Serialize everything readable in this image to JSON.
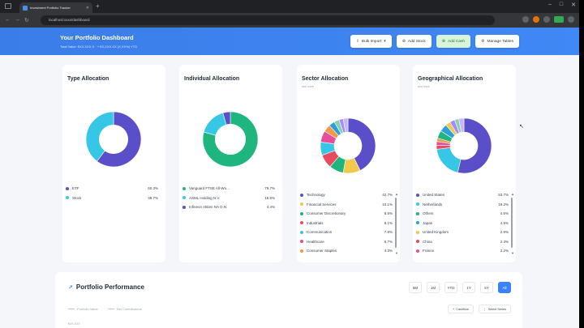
{
  "browser": {
    "tab_title": "Investment Portfolio Tracker",
    "url": "localhost:xxxx/dashboard",
    "profile_badge": "PSE"
  },
  "header": {
    "title": "Your Portfolio Dashboard",
    "subtitle": "Total Value: €XX,XXX.X  ·  + €X,XXX.XX (X.XX%) YTD",
    "buttons": {
      "bulk_import": "Bulk Import",
      "add_stock": "Add Stock",
      "add_cash": "Add Cash",
      "manage_tables": "Manage Tables"
    }
  },
  "colors": {
    "brand": "#3b82f6",
    "purple": "#5b4fc9",
    "cyan": "#37c7e6",
    "green": "#1fb57e"
  },
  "cards": {
    "type": {
      "title": "Type Allocation",
      "items": [
        {
          "name": "ETF",
          "pct": "60.3%",
          "color": "#5b4fc9",
          "value": 60.3
        },
        {
          "name": "Stock",
          "pct": "39.7%",
          "color": "#37c7e6",
          "value": 39.7
        }
      ]
    },
    "individual": {
      "title": "Individual Allocation",
      "items": [
        {
          "name": "Vanguard FTSE All-Wo...",
          "pct": "79.7%",
          "color": "#1fb57e",
          "value": 79.7
        },
        {
          "name": "ASML Holding N.V.",
          "pct": "16.5%",
          "color": "#37c7e6",
          "value": 16.5
        },
        {
          "name": "Infineon Aktien NA O.N.",
          "pct": "4.4%",
          "color": "#5b4fc9",
          "value": 4.4
        }
      ]
    },
    "sector": {
      "title": "Sector Allocation",
      "subtitle": "and more",
      "items": [
        {
          "name": "Technology",
          "pct": "42.7%",
          "color": "#5b4fc9"
        },
        {
          "name": "Financial Services",
          "pct": "10.1%",
          "color": "#f2c94c"
        },
        {
          "name": "Consumer Discretionary",
          "pct": "8.5%",
          "color": "#1fb57e"
        },
        {
          "name": "Industrials",
          "pct": "8.1%",
          "color": "#e84a5f"
        },
        {
          "name": "Communication",
          "pct": "7.8%",
          "color": "#37c7e6"
        },
        {
          "name": "Healthcare",
          "pct": "6.7%",
          "color": "#e64e9c"
        },
        {
          "name": "Consumer Staples",
          "pct": "4.3%",
          "color": "#f2994a"
        }
      ],
      "ring": [
        {
          "color": "#5b4fc9",
          "value": 42.7
        },
        {
          "color": "#f2c94c",
          "value": 10.1
        },
        {
          "color": "#1fb57e",
          "value": 8.5
        },
        {
          "color": "#e84a5f",
          "value": 8.1
        },
        {
          "color": "#37c7e6",
          "value": 7.8
        },
        {
          "color": "#e64e9c",
          "value": 6.7
        },
        {
          "color": "#f2994a",
          "value": 4.3
        },
        {
          "color": "#2aa0d6",
          "value": 3.5
        },
        {
          "color": "#8ad0b0",
          "value": 3.0
        },
        {
          "color": "#a78bfa",
          "value": 2.5
        },
        {
          "color": "#c4b5fd",
          "value": 2.8
        }
      ]
    },
    "geo": {
      "title": "Geographical Allocation",
      "subtitle": "and more",
      "items": [
        {
          "name": "United States",
          "pct": "53.7%",
          "color": "#5b4fc9"
        },
        {
          "name": "Netherlands",
          "pct": "19.2%",
          "color": "#37c7e6"
        },
        {
          "name": "Others",
          "pct": "4.6%",
          "color": "#1fb57e"
        },
        {
          "name": "Japan",
          "pct": "4.5%",
          "color": "#2aa0d6"
        },
        {
          "name": "United Kingdom",
          "pct": "2.9%",
          "color": "#f2c94c"
        },
        {
          "name": "China",
          "pct": "2.4%",
          "color": "#e84a5f"
        },
        {
          "name": "France",
          "pct": "2.2%",
          "color": "#e64e9c"
        }
      ],
      "ring": [
        {
          "color": "#5b4fc9",
          "value": 53.7
        },
        {
          "color": "#37c7e6",
          "value": 19.2
        },
        {
          "color": "#e84a5f",
          "value": 2.4
        },
        {
          "color": "#e64e9c",
          "value": 2.2
        },
        {
          "color": "#f2994a",
          "value": 2.0
        },
        {
          "color": "#1fb57e",
          "value": 4.6
        },
        {
          "color": "#2aa0d6",
          "value": 4.5
        },
        {
          "color": "#f2c94c",
          "value": 2.9
        },
        {
          "color": "#a78bfa",
          "value": 3.0
        },
        {
          "color": "#8ad0b0",
          "value": 2.5
        },
        {
          "color": "#c4b5fd",
          "value": 3.0
        }
      ]
    }
  },
  "performance": {
    "title": "Portfolio Performance",
    "ranges": [
      "6M",
      "1M",
      "YTD",
      "1Y",
      "5Y",
      "All"
    ],
    "active_range": "All",
    "legend": [
      "Portfolio Value",
      "Net Contributions"
    ],
    "actions": [
      "Cashflow",
      "Select Series"
    ],
    "y_top": "€XX,XXX"
  }
}
